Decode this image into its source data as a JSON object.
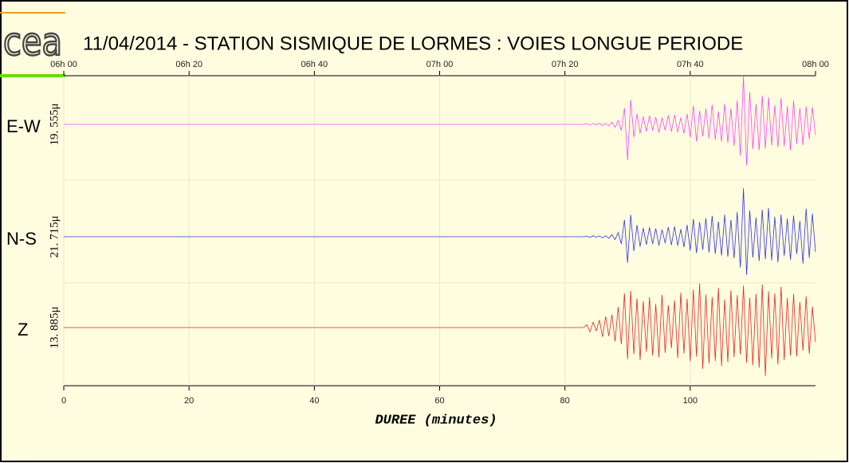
{
  "logo": "cea",
  "chart_data": {
    "type": "line",
    "title": "11/04/2014  -  STATION SISMIQUE DE LORMES : VOIES LONGUE PERIODE",
    "xlabel": "DUREE (minutes)",
    "xlim": [
      0,
      120
    ],
    "xticks": [
      0,
      20,
      40,
      60,
      80,
      100
    ],
    "top_ticks": [
      {
        "value": 0,
        "label": "06h 00"
      },
      {
        "value": 20,
        "label": "06h 20"
      },
      {
        "value": 40,
        "label": "06h 40"
      },
      {
        "value": 60,
        "label": "07h 00"
      },
      {
        "value": 80,
        "label": "07h 20"
      },
      {
        "value": 100,
        "label": "07h 40"
      },
      {
        "value": 120,
        "label": "08h 00"
      }
    ],
    "grid": true,
    "x": [
      0,
      83,
      83.5,
      84,
      84.5,
      85,
      85.5,
      86,
      86.5,
      87,
      87.5,
      88,
      88.5,
      89,
      89.5,
      90,
      90.5,
      91,
      91.5,
      92,
      92.5,
      93,
      93.5,
      94,
      94.5,
      95,
      95.5,
      96,
      96.5,
      97,
      97.5,
      98,
      98.5,
      99,
      99.5,
      100,
      100.5,
      101,
      101.5,
      102,
      102.5,
      103,
      103.5,
      104,
      104.5,
      105,
      105.5,
      106,
      106.5,
      107,
      107.5,
      108,
      108.5,
      109,
      109.5,
      110,
      110.5,
      111,
      111.5,
      112,
      112.5,
      113,
      113.5,
      114,
      114.5,
      115,
      115.5,
      116,
      116.5,
      117,
      117.5,
      118,
      118.5,
      119,
      119.5,
      120
    ],
    "series": [
      {
        "name": "E-W",
        "scale_label": "19. 555μ",
        "ylim": [
          -19.555,
          19.555
        ],
        "color": "#ff44ff",
        "values": [
          0,
          0,
          0.2,
          -0.3,
          0.3,
          -0.2,
          0.4,
          -0.5,
          0.3,
          -0.6,
          0.8,
          -1.2,
          1.5,
          -2.5,
          6.5,
          -14.2,
          9.8,
          -5.1,
          4.2,
          -3.6,
          3.1,
          -2.8,
          3.4,
          -2.5,
          2.9,
          -3.2,
          2.6,
          -2.4,
          3.5,
          -2.9,
          3.8,
          -3.1,
          2.7,
          -3.6,
          4.1,
          -5.2,
          7.4,
          -6.8,
          5.3,
          -4.7,
          6.2,
          -5.5,
          7.8,
          -6.1,
          5.0,
          -6.9,
          8.2,
          -7.4,
          6.3,
          -8.6,
          9.5,
          -12.4,
          18.9,
          -16.3,
          12.7,
          -9.8,
          8.1,
          -10.2,
          11.4,
          -9.6,
          10.8,
          -8.3,
          7.6,
          -9.1,
          10.5,
          -8.7,
          7.2,
          -10.3,
          9.4,
          -7.8,
          6.5,
          -8.2,
          7.1,
          -5.9,
          6.8,
          -4.3
        ]
      },
      {
        "name": "N-S",
        "scale_label": "21. 715μ",
        "ylim": [
          -21.715,
          21.715
        ],
        "color": "#3333ee",
        "values": [
          0,
          0,
          0.2,
          -0.3,
          0.4,
          -0.2,
          0.3,
          -0.5,
          0.4,
          -0.7,
          0.9,
          -1.3,
          1.8,
          -3.2,
          7.4,
          -11.5,
          9.6,
          -6.3,
          5.1,
          -4.4,
          3.8,
          -3.5,
          4.1,
          -3.2,
          3.6,
          -3.9,
          3.1,
          -2.8,
          4.2,
          -3.7,
          4.5,
          -3.9,
          3.3,
          -4.6,
          5.2,
          -6.1,
          7.8,
          -7.2,
          6.4,
          -5.8,
          8.1,
          -6.9,
          9.2,
          -7.5,
          6.7,
          -8.3,
          9.6,
          -8.8,
          7.4,
          -9.5,
          10.8,
          -13.6,
          21.3,
          -16.8,
          11.5,
          -9.2,
          8.4,
          -10.7,
          11.9,
          -9.9,
          12.6,
          -10.4,
          8.8,
          -11.3,
          9.7,
          -8.5,
          7.9,
          -10.1,
          9.3,
          -7.6,
          6.9,
          -11.8,
          12.4,
          -9.3,
          10.2,
          -6.7
        ]
      },
      {
        "name": "Z",
        "scale_label": "13. 885μ",
        "ylim": [
          -13.885,
          13.885
        ],
        "color": "#ee2222",
        "values": [
          0,
          0,
          0.8,
          -1.2,
          1.5,
          -0.9,
          2.1,
          -2.6,
          3.1,
          -2.4,
          3.6,
          -3.9,
          5.8,
          -4.7,
          9.6,
          -8.9,
          10.3,
          -7.5,
          8.2,
          -9.1,
          7.4,
          -6.8,
          8.5,
          -7.9,
          6.6,
          -8.4,
          9.2,
          -7.1,
          6.3,
          -5.8,
          7.7,
          -8.6,
          9.8,
          -7.3,
          8.1,
          -9.5,
          10.7,
          -8.2,
          12.4,
          -11.6,
          9.3,
          -10.1,
          8.6,
          -9.4,
          11.2,
          -10.8,
          7.9,
          -9.7,
          10.5,
          -8.3,
          9.1,
          -7.6,
          11.8,
          -9.9,
          8.4,
          -10.6,
          9.5,
          -11.3,
          12.1,
          -13.6,
          10.2,
          -8.7,
          9.6,
          -10.4,
          11.5,
          -9.2,
          8.3,
          -7.9,
          9.4,
          -8.1,
          7.2,
          -6.5,
          8.8,
          -7.4,
          5.9,
          -4.1
        ]
      }
    ]
  }
}
